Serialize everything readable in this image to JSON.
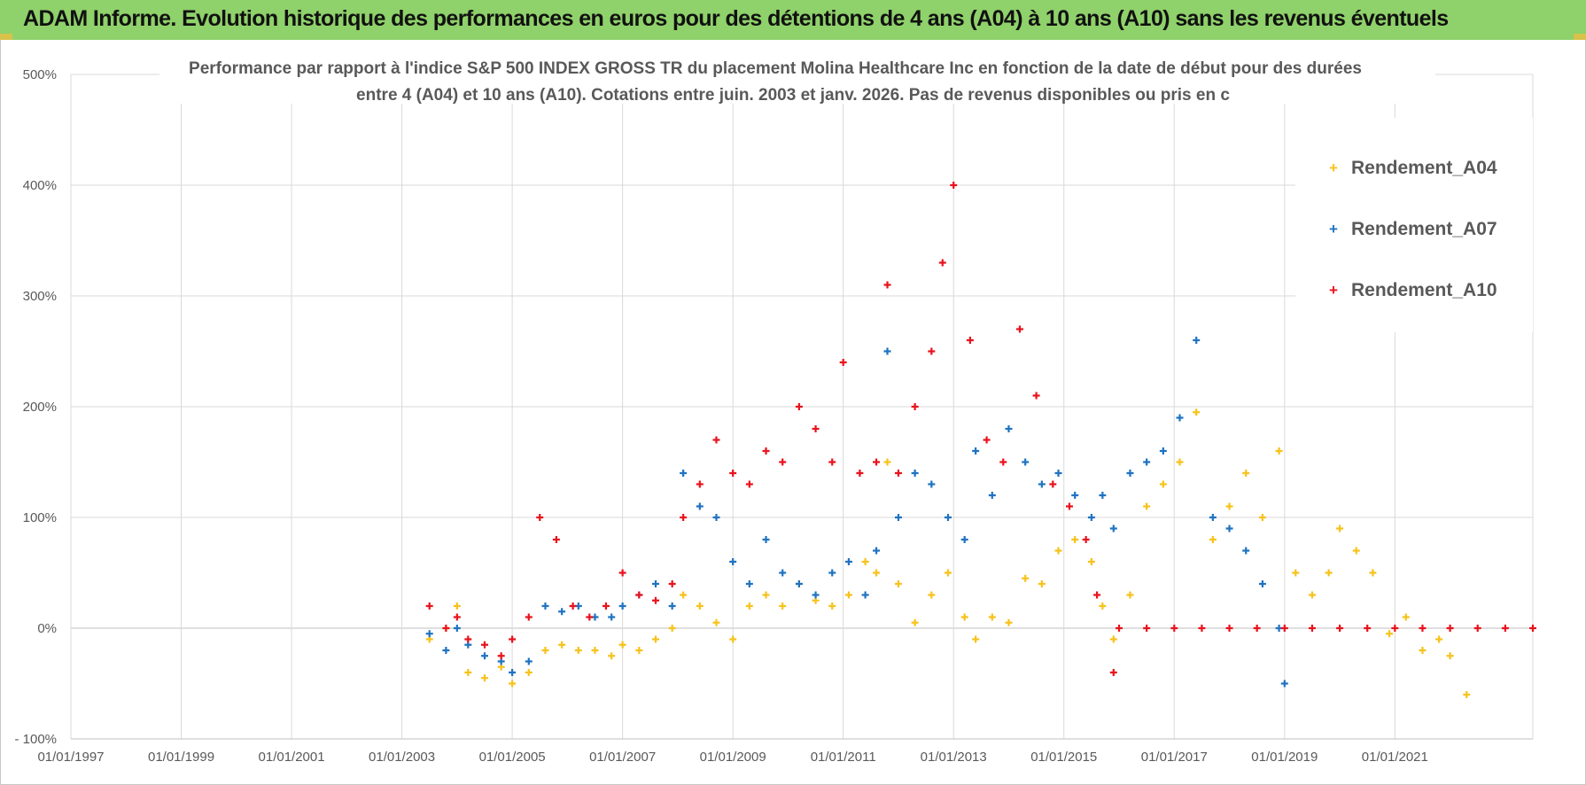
{
  "banner": {
    "title": "ADAM Informe. Evolution historique des performances en euros pour des détentions de 4 ans (A04) à 10 ans (A10) sans les revenus éventuels"
  },
  "colors": {
    "banner_bg": "#8fd16a",
    "grid": "#d9d9d9",
    "a04": "#f7c21b",
    "a07": "#1f73c1",
    "a10": "#e8131d"
  },
  "chart_data": {
    "type": "scatter",
    "title_lines": [
      "Performance par rapport à l'indice S&P 500 INDEX GROSS TR  du placement Molina Healthcare Inc en fonction de la date de début pour des durées",
      "entre 4 (A04) et 10 ans (A10). Cotations entre juin. 2003 et janv. 2026. Pas de revenus disponibles ou pris en c"
    ],
    "xlabel": "",
    "ylabel": "",
    "x_range": [
      1997.0,
      2023.5
    ],
    "ylim": [
      -100,
      500
    ],
    "y_ticks": [
      -100,
      0,
      100,
      200,
      300,
      400,
      500
    ],
    "y_tick_labels": [
      "- 100%",
      "0%",
      "100%",
      "200%",
      "300%",
      "400%",
      "500%"
    ],
    "x_ticks": [
      1997,
      1999,
      2001,
      2003,
      2005,
      2007,
      2009,
      2011,
      2013,
      2015,
      2017,
      2019,
      2021
    ],
    "x_tick_labels": [
      "01/01/1997",
      "01/01/1999",
      "01/01/2001",
      "01/01/2003",
      "01/01/2005",
      "01/01/2007",
      "01/01/2009",
      "01/01/2011",
      "01/01/2013",
      "01/01/2015",
      "01/01/2017",
      "01/01/2019",
      "01/01/2021"
    ],
    "grid": true,
    "legend_position": "top-right",
    "series": [
      {
        "name": "Rendement_A04",
        "color": "#f7c21b",
        "x": [
          2003.5,
          2003.8,
          2004.0,
          2004.2,
          2004.5,
          2004.8,
          2005.0,
          2005.3,
          2005.6,
          2005.9,
          2006.2,
          2006.5,
          2006.8,
          2007.0,
          2007.3,
          2007.6,
          2007.9,
          2008.1,
          2008.4,
          2008.7,
          2009.0,
          2009.3,
          2009.6,
          2009.9,
          2010.2,
          2010.5,
          2010.8,
          2011.1,
          2011.4,
          2011.6,
          2011.8,
          2012.0,
          2012.3,
          2012.6,
          2012.9,
          2013.2,
          2013.4,
          2013.7,
          2014.0,
          2014.3,
          2014.6,
          2014.9,
          2015.2,
          2015.5,
          2015.7,
          2015.9,
          2016.2,
          2016.5,
          2016.8,
          2017.1,
          2017.4,
          2017.7,
          2018.0,
          2018.3,
          2018.6,
          2018.9,
          2019.2,
          2019.5,
          2019.8,
          2020.0,
          2020.3,
          2020.6,
          2020.9,
          2021.2,
          2021.5,
          2021.8,
          2022.0,
          2022.3
        ],
        "y": [
          -10,
          0,
          20,
          -40,
          -45,
          -35,
          -50,
          -40,
          -20,
          -15,
          -20,
          -20,
          -25,
          -15,
          -20,
          -10,
          0,
          30,
          20,
          5,
          -10,
          20,
          30,
          20,
          40,
          25,
          20,
          30,
          60,
          50,
          150,
          40,
          5,
          30,
          50,
          10,
          -10,
          10,
          5,
          45,
          40,
          70,
          80,
          60,
          20,
          -10,
          30,
          110,
          130,
          150,
          195,
          80,
          110,
          140,
          100,
          160,
          50,
          30,
          50,
          90,
          70,
          50,
          -5,
          10,
          -20,
          -10,
          -25,
          -60
        ]
      },
      {
        "name": "Rendement_A07",
        "color": "#1f73c1",
        "x": [
          2003.5,
          2003.8,
          2004.0,
          2004.2,
          2004.5,
          2004.8,
          2005.0,
          2005.3,
          2005.6,
          2005.9,
          2006.2,
          2006.5,
          2006.8,
          2007.0,
          2007.3,
          2007.6,
          2007.9,
          2008.1,
          2008.4,
          2008.7,
          2009.0,
          2009.3,
          2009.6,
          2009.9,
          2010.2,
          2010.5,
          2010.8,
          2011.1,
          2011.4,
          2011.6,
          2011.8,
          2012.0,
          2012.3,
          2012.6,
          2012.9,
          2013.2,
          2013.4,
          2013.7,
          2014.0,
          2014.3,
          2014.6,
          2014.9,
          2015.2,
          2015.5,
          2015.7,
          2015.9,
          2016.2,
          2016.5,
          2016.8,
          2017.1,
          2017.4,
          2017.7,
          2018.0,
          2018.3,
          2018.6,
          2018.9,
          2019.0
        ],
        "y": [
          -5,
          -20,
          0,
          -15,
          -25,
          -30,
          -40,
          -30,
          20,
          15,
          20,
          10,
          10,
          20,
          30,
          40,
          20,
          140,
          110,
          100,
          60,
          40,
          80,
          50,
          40,
          30,
          50,
          60,
          30,
          70,
          250,
          100,
          140,
          130,
          100,
          80,
          160,
          120,
          180,
          150,
          130,
          140,
          120,
          100,
          120,
          90,
          140,
          150,
          160,
          190,
          260,
          100,
          90,
          70,
          40,
          0,
          -50
        ]
      },
      {
        "name": "Rendement_A10",
        "color": "#e8131d",
        "x": [
          2003.5,
          2003.8,
          2004.0,
          2004.2,
          2004.5,
          2004.8,
          2005.0,
          2005.3,
          2005.5,
          2005.8,
          2006.1,
          2006.4,
          2006.7,
          2007.0,
          2007.3,
          2007.6,
          2007.9,
          2008.1,
          2008.4,
          2008.7,
          2009.0,
          2009.3,
          2009.6,
          2009.9,
          2010.2,
          2010.5,
          2010.8,
          2011.0,
          2011.3,
          2011.6,
          2011.8,
          2012.0,
          2012.3,
          2012.6,
          2012.8,
          2013.0,
          2013.3,
          2013.6,
          2013.9,
          2014.2,
          2014.5,
          2014.8,
          2015.1,
          2015.4,
          2015.6,
          2015.9,
          2016.0,
          2016.5,
          2017.0,
          2017.5,
          2018.0,
          2018.5,
          2019.0,
          2019.5,
          2020.0,
          2020.5,
          2021.0,
          2021.5,
          2022.0,
          2022.5,
          2023.0,
          2023.5
        ],
        "y": [
          20,
          0,
          10,
          -10,
          -15,
          -25,
          -10,
          10,
          100,
          80,
          20,
          10,
          20,
          50,
          30,
          25,
          40,
          100,
          130,
          170,
          140,
          130,
          160,
          150,
          200,
          180,
          150,
          240,
          140,
          150,
          310,
          140,
          200,
          250,
          330,
          400,
          260,
          170,
          150,
          270,
          210,
          130,
          110,
          80,
          30,
          -40,
          0,
          0,
          0,
          0,
          0,
          0,
          0,
          0,
          0,
          0,
          0,
          0,
          0,
          0,
          0,
          0
        ]
      }
    ]
  }
}
